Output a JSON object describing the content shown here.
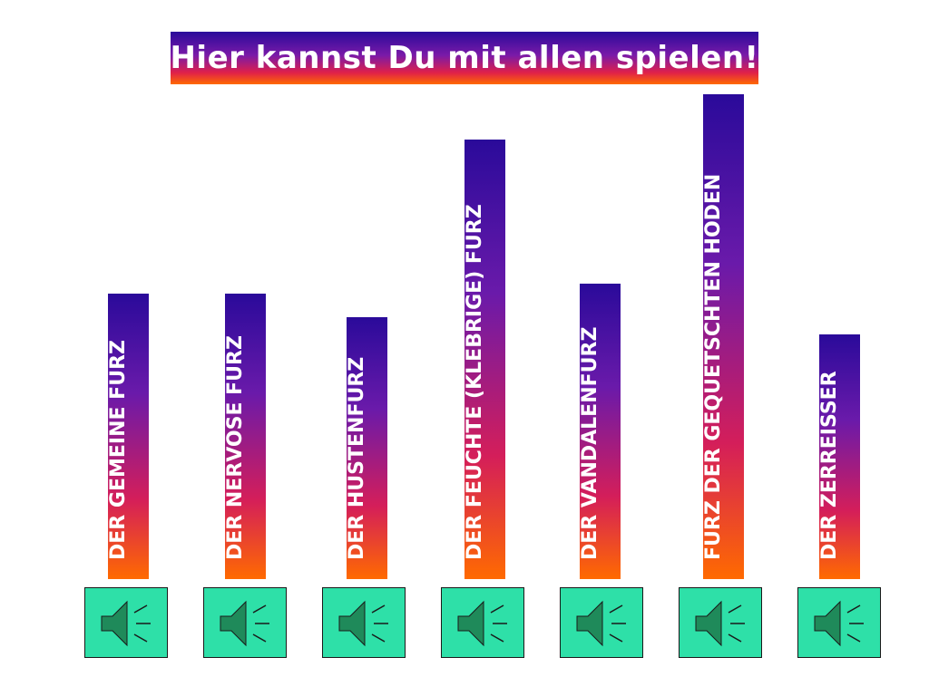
{
  "title": "Hier kannst Du mit allen spielen!",
  "colors": {
    "gradient_top": "#2a0a9a",
    "gradient_bottom": "#ff6a00",
    "button_fill": "#2ee0a8",
    "speaker_fill": "#1f8a5a"
  },
  "items": [
    {
      "label": "DER GEMEINE FURZ",
      "icon": "speaker-icon"
    },
    {
      "label": "DER NERVÖSE FURZ",
      "icon": "speaker-icon"
    },
    {
      "label": "DER HUSTENFURZ",
      "icon": "speaker-icon"
    },
    {
      "label": "DER FEUCHTE (KLEBRIGE) FURZ",
      "icon": "speaker-icon"
    },
    {
      "label": "DER VANDALENFURZ",
      "icon": "speaker-icon"
    },
    {
      "label": "FURZ DER GEQUETSCHTEN HODEN",
      "icon": "speaker-icon"
    },
    {
      "label": "DER ZERREISSER",
      "icon": "speaker-icon"
    }
  ]
}
